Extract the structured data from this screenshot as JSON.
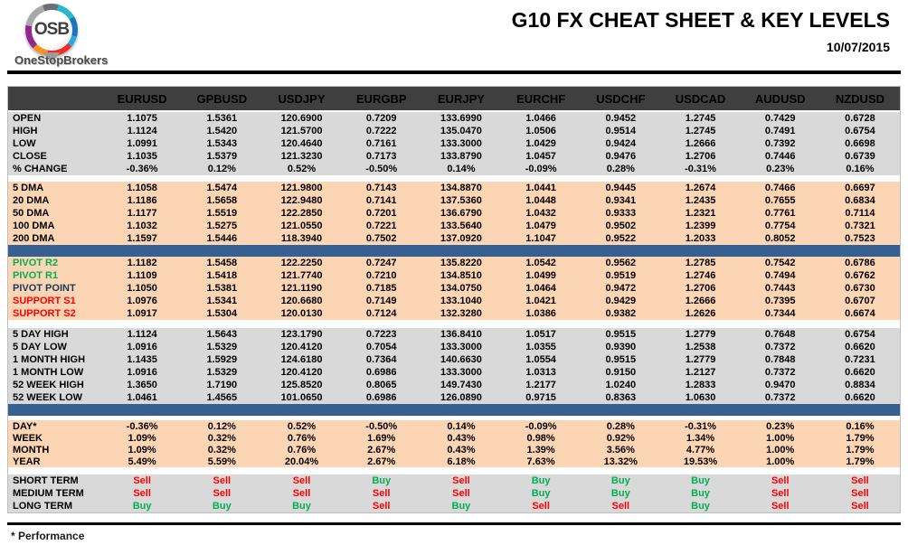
{
  "brand": {
    "logo_letters": "OSB",
    "logo_name": "OneStopBrokers"
  },
  "header": {
    "title": "G10 FX CHEAT SHEET & KEY LEVELS",
    "date": "10/07/2015"
  },
  "footnote": "* Performance",
  "colors": {
    "header-bg": "#3f3f3f",
    "gray-bg": "#d9d9d9",
    "peach-bg": "#fcd5b4",
    "bar-blue": "#376092",
    "green": "#00b050",
    "red": "#ff0000",
    "navy": "#17375d"
  },
  "table": {
    "columns": [
      "EURUSD",
      "GPBUSD",
      "USDJPY",
      "EURGBP",
      "EURJPY",
      "EURCHF",
      "USDCHF",
      "USDCAD",
      "AUDUSD",
      "NZDUSD"
    ],
    "sections": [
      {
        "name": "quotes",
        "bg": "gray",
        "gap_before": 0,
        "rows": [
          {
            "label": "OPEN",
            "values": [
              "1.1075",
              "1.5361",
              "120.6900",
              "0.7209",
              "133.6990",
              "1.0466",
              "0.9452",
              "1.2745",
              "0.7429",
              "0.6728"
            ]
          },
          {
            "label": "HIGH",
            "values": [
              "1.1124",
              "1.5420",
              "121.5700",
              "0.7222",
              "135.0470",
              "1.0506",
              "0.9514",
              "1.2745",
              "0.7491",
              "0.6754"
            ]
          },
          {
            "label": "LOW",
            "values": [
              "1.0991",
              "1.5343",
              "120.4640",
              "0.7161",
              "133.3000",
              "1.0429",
              "0.9424",
              "1.2666",
              "0.7392",
              "0.6698"
            ]
          },
          {
            "label": "CLOSE",
            "values": [
              "1.1035",
              "1.5379",
              "121.3230",
              "0.7173",
              "133.8790",
              "1.0457",
              "0.9476",
              "1.2706",
              "0.7446",
              "0.6739"
            ]
          },
          {
            "label": "% CHANGE",
            "values": [
              "-0.36%",
              "0.12%",
              "0.52%",
              "-0.50%",
              "0.14%",
              "-0.09%",
              "0.28%",
              "-0.31%",
              "0.23%",
              "0.16%"
            ]
          }
        ]
      },
      {
        "name": "dma",
        "bg": "peach",
        "gap_before": 7,
        "rows": [
          {
            "label": "5 DMA",
            "values": [
              "1.1058",
              "1.5474",
              "121.9800",
              "0.7143",
              "134.8870",
              "1.0441",
              "0.9445",
              "1.2674",
              "0.7466",
              "0.6697"
            ]
          },
          {
            "label": "20 DMA",
            "values": [
              "1.1186",
              "1.5658",
              "122.9480",
              "0.7141",
              "137.5360",
              "1.0448",
              "0.9341",
              "1.2435",
              "0.7655",
              "0.6834"
            ]
          },
          {
            "label": "50 DMA",
            "values": [
              "1.1177",
              "1.5519",
              "122.2850",
              "0.7201",
              "136.6790",
              "1.0432",
              "0.9333",
              "1.2321",
              "0.7761",
              "0.7114"
            ]
          },
          {
            "label": "100 DMA",
            "values": [
              "1.1032",
              "1.5275",
              "121.0550",
              "0.7221",
              "133.5640",
              "1.0479",
              "0.9502",
              "1.2399",
              "0.7754",
              "0.7321"
            ]
          },
          {
            "label": "200 DMA",
            "values": [
              "1.1597",
              "1.5446",
              "118.3940",
              "0.7502",
              "137.0920",
              "1.1047",
              "0.9522",
              "1.2033",
              "0.8052",
              "0.7523"
            ]
          }
        ]
      },
      {
        "name": "pivots",
        "bg": "peach",
        "bar_before": true,
        "rows": [
          {
            "label": "PIVOT R2",
            "label_color": "green",
            "values": [
              "1.1182",
              "1.5458",
              "122.2250",
              "0.7247",
              "135.8220",
              "1.0542",
              "0.9562",
              "1.2785",
              "0.7542",
              "0.6786"
            ]
          },
          {
            "label": "PIVOT R1",
            "label_color": "green",
            "values": [
              "1.1109",
              "1.5418",
              "121.7740",
              "0.7210",
              "134.8510",
              "1.0499",
              "0.9519",
              "1.2746",
              "0.7494",
              "0.6762"
            ]
          },
          {
            "label": "PIVOT POINT",
            "label_color": "navy",
            "values": [
              "1.1050",
              "1.5381",
              "121.1190",
              "0.7185",
              "134.0750",
              "1.0464",
              "0.9472",
              "1.2706",
              "0.7443",
              "0.6730"
            ]
          },
          {
            "label": "SUPPORT S1",
            "label_color": "red",
            "values": [
              "1.0976",
              "1.5341",
              "120.6680",
              "0.7149",
              "133.1040",
              "1.0421",
              "0.9429",
              "1.2666",
              "0.7395",
              "0.6707"
            ]
          },
          {
            "label": "SUPPORT S2",
            "label_color": "red",
            "values": [
              "1.0917",
              "1.5304",
              "120.0130",
              "0.7124",
              "132.3280",
              "1.0386",
              "0.9382",
              "1.2626",
              "0.7344",
              "0.6674"
            ]
          }
        ]
      },
      {
        "name": "ranges",
        "bg": "gray",
        "gap_before": 9,
        "rows": [
          {
            "label": "5 DAY HIGH",
            "values": [
              "1.1124",
              "1.5643",
              "123.1790",
              "0.7223",
              "136.8410",
              "1.0517",
              "0.9515",
              "1.2779",
              "0.7648",
              "0.6754"
            ]
          },
          {
            "label": "5 DAY LOW",
            "values": [
              "1.0916",
              "1.5329",
              "120.4120",
              "0.7054",
              "133.3000",
              "1.0355",
              "0.9390",
              "1.2538",
              "0.7372",
              "0.6620"
            ]
          },
          {
            "label": "1 MONTH HIGH",
            "values": [
              "1.1435",
              "1.5929",
              "124.6180",
              "0.7364",
              "140.6630",
              "1.0554",
              "0.9515",
              "1.2779",
              "0.7848",
              "0.7231"
            ]
          },
          {
            "label": "1 MONTH LOW",
            "values": [
              "1.0916",
              "1.5329",
              "120.4120",
              "0.6986",
              "133.3000",
              "1.0313",
              "0.9150",
              "1.2127",
              "0.7372",
              "0.6620"
            ]
          },
          {
            "label": "52 WEEK HIGH",
            "values": [
              "1.3650",
              "1.7190",
              "125.8520",
              "0.8065",
              "149.7430",
              "1.2177",
              "1.0240",
              "1.2833",
              "0.9470",
              "0.8834"
            ]
          },
          {
            "label": "52 WEEK LOW",
            "values": [
              "1.0461",
              "1.4565",
              "101.0650",
              "0.6986",
              "126.0890",
              "0.9715",
              "0.8363",
              "1.0630",
              "0.7372",
              "0.6620"
            ]
          }
        ]
      },
      {
        "name": "performance",
        "bg": "peach",
        "bar_before": true,
        "gap_before": 5,
        "rows": [
          {
            "label": "DAY*",
            "values": [
              "-0.36%",
              "0.12%",
              "0.52%",
              "-0.50%",
              "0.14%",
              "-0.09%",
              "0.28%",
              "-0.31%",
              "0.23%",
              "0.16%"
            ]
          },
          {
            "label": "WEEK",
            "values": [
              "1.09%",
              "0.32%",
              "0.76%",
              "1.69%",
              "0.43%",
              "0.98%",
              "0.92%",
              "1.34%",
              "1.00%",
              "1.79%"
            ]
          },
          {
            "label": "MONTH",
            "values": [
              "1.09%",
              "0.32%",
              "0.76%",
              "2.67%",
              "0.43%",
              "1.39%",
              "3.56%",
              "4.77%",
              "1.00%",
              "1.79%"
            ]
          },
          {
            "label": "YEAR",
            "values": [
              "5.49%",
              "5.59%",
              "20.04%",
              "2.67%",
              "6.18%",
              "7.63%",
              "13.32%",
              "19.53%",
              "1.00%",
              "1.79%"
            ]
          }
        ]
      },
      {
        "name": "signals",
        "bg": "gray",
        "gap_before": 8,
        "type": "signal",
        "rows": [
          {
            "label": "SHORT TERM",
            "values": [
              "Sell",
              "Sell",
              "Sell",
              "Buy",
              "Sell",
              "Buy",
              "Buy",
              "Buy",
              "Sell",
              "Sell"
            ]
          },
          {
            "label": "MEDIUM TERM",
            "values": [
              "Sell",
              "Sell",
              "Sell",
              "Sell",
              "Sell",
              "Buy",
              "Buy",
              "Buy",
              "Sell",
              "Sell"
            ]
          },
          {
            "label": "LONG TERM",
            "values": [
              "Buy",
              "Buy",
              "Buy",
              "Sell",
              "Buy",
              "Sell",
              "Sell",
              "Buy",
              "Sell",
              "Sell"
            ]
          }
        ]
      }
    ]
  }
}
